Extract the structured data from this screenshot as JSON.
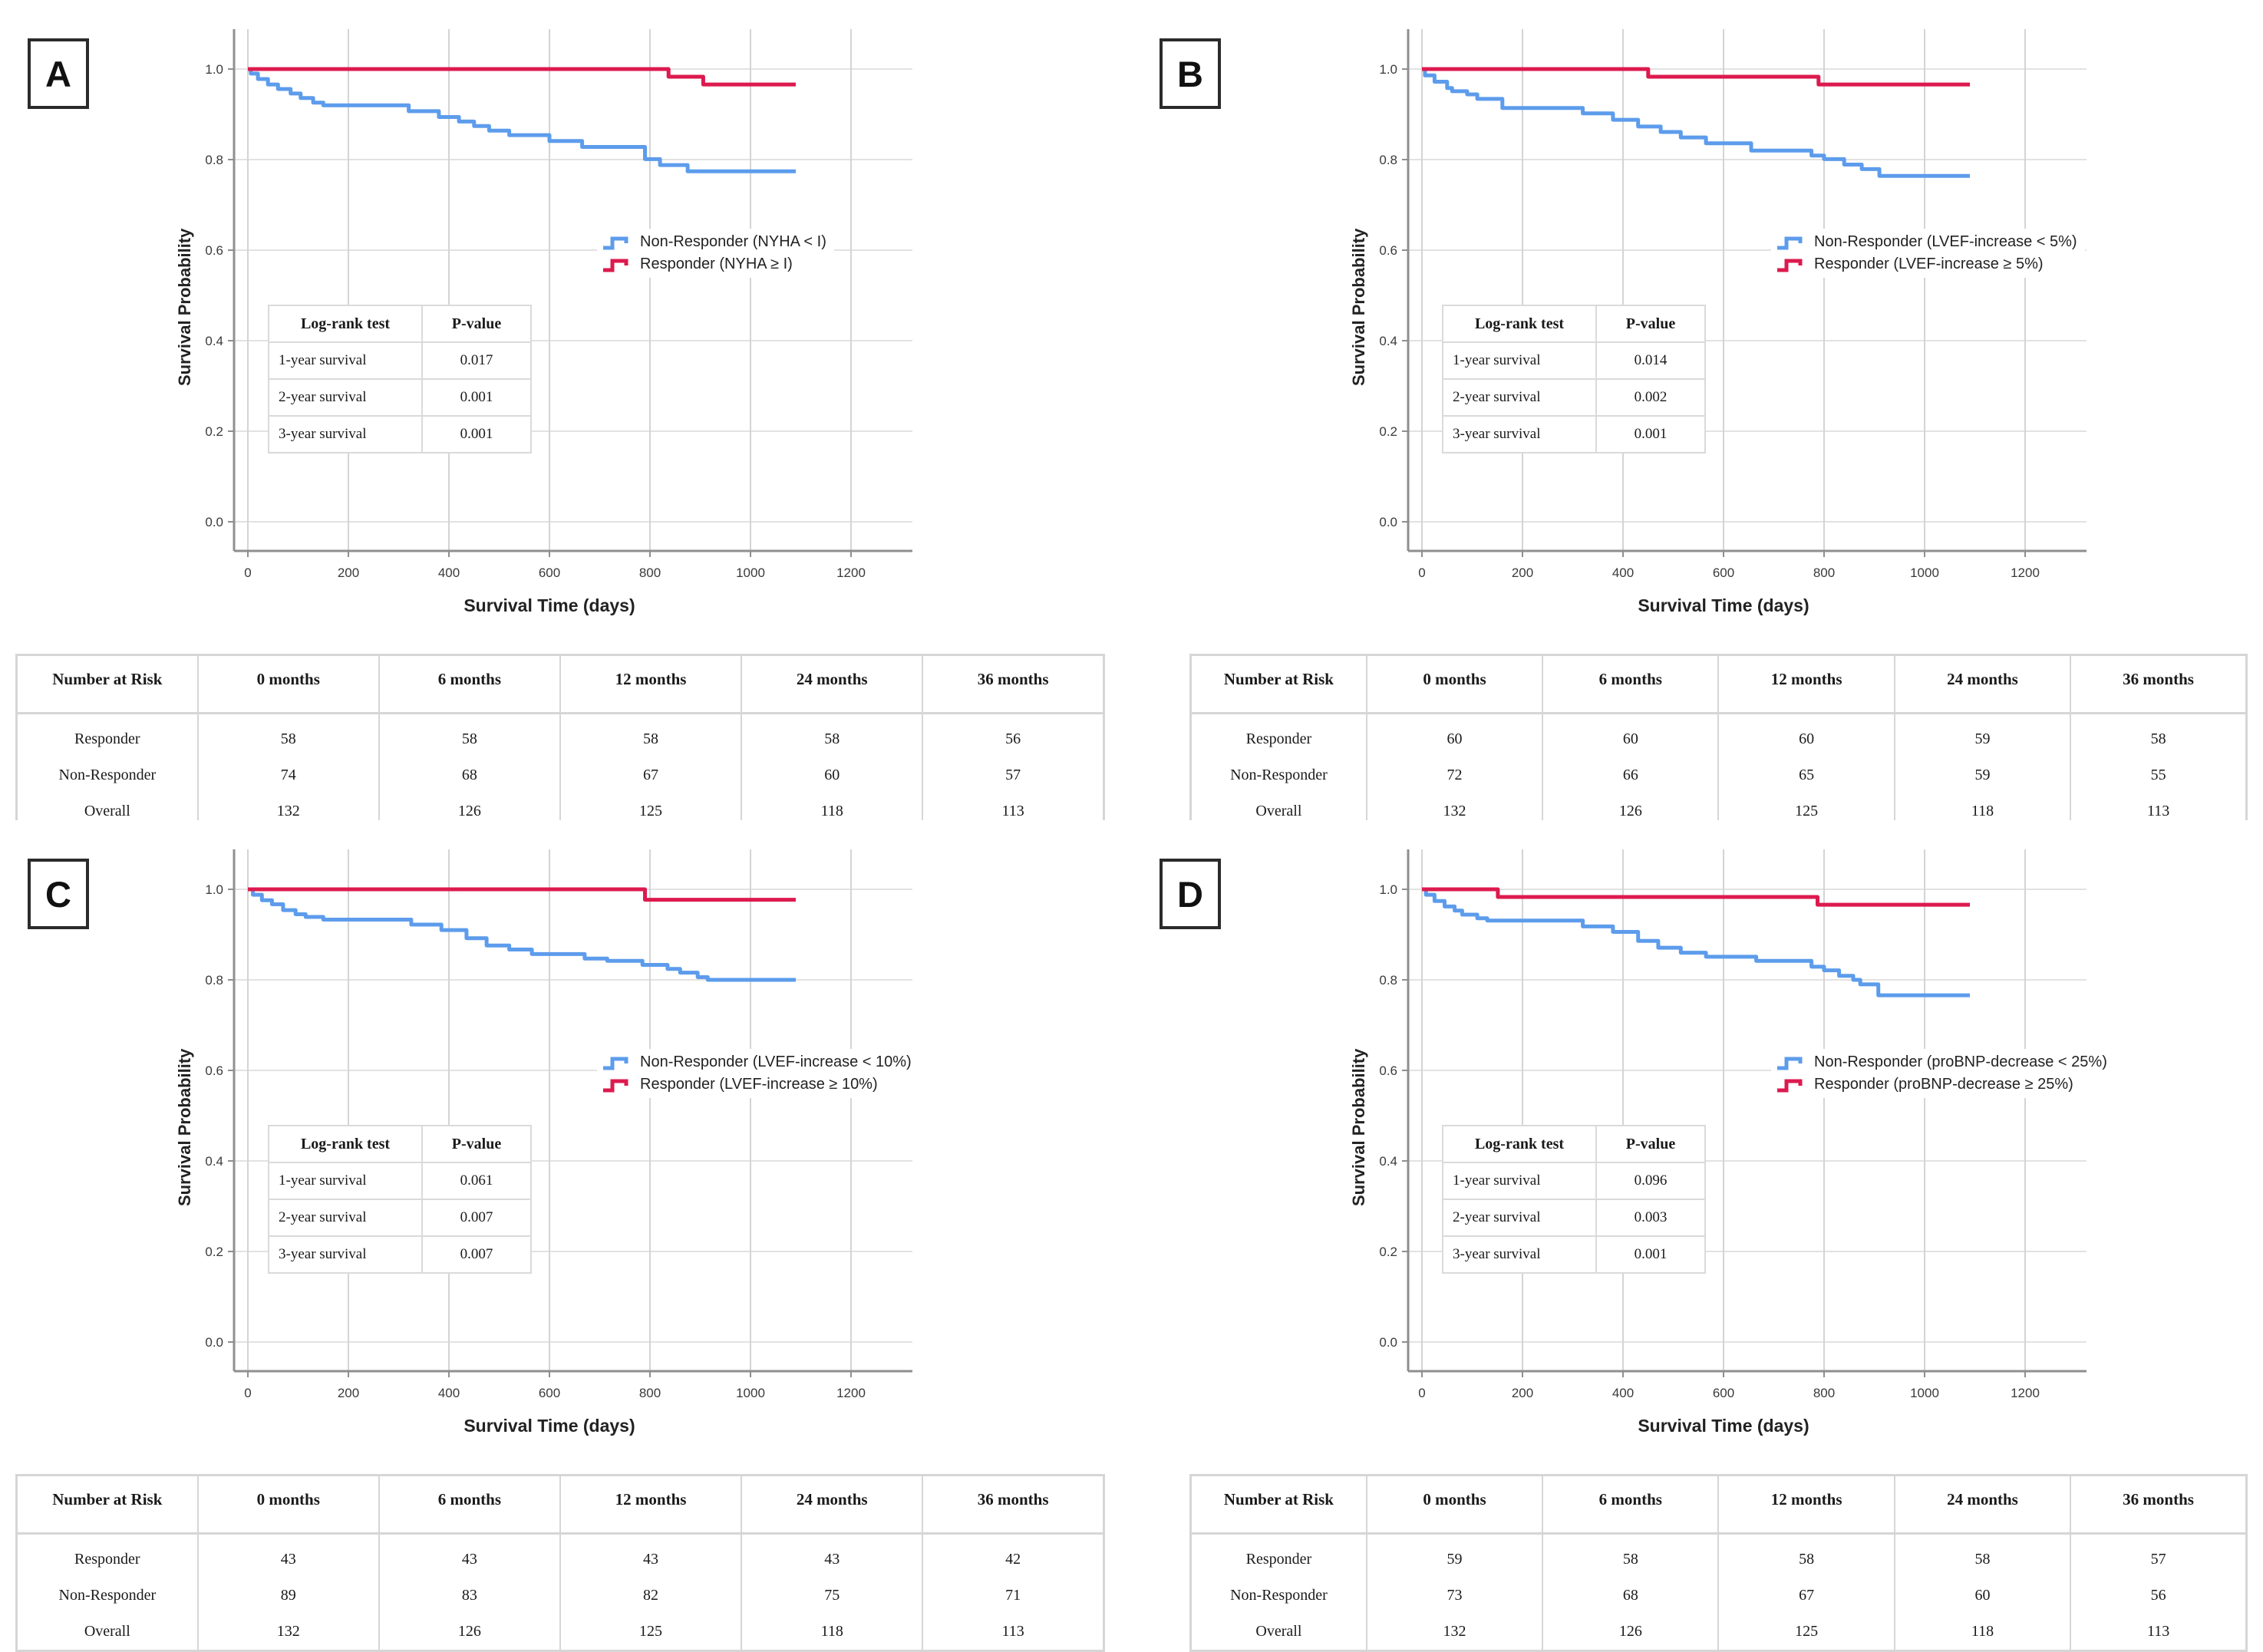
{
  "chart_data": [
    {
      "panel_label": "A",
      "type": "line",
      "subtype": "kaplan-meier-step",
      "xlabel": "Survival Time (days)",
      "ylabel": "Survival Probability",
      "xticks": [
        "0",
        "200",
        "400",
        "600",
        "800",
        "1000",
        "1200"
      ],
      "yticks": [
        "0.0",
        "0.2",
        "0.4",
        "0.6",
        "0.8",
        "1.0"
      ],
      "xlim": [
        0,
        1260
      ],
      "ylim": [
        0.0,
        1.05
      ],
      "grid": true,
      "legend_position": "right-center",
      "series": [
        {
          "name": "Non-Responder (NYHA < I)",
          "color": "#5d9cec",
          "steps": [
            [
              0,
              1.0
            ],
            [
              6,
              0.99
            ],
            [
              20,
              0.978
            ],
            [
              40,
              0.966
            ],
            [
              60,
              0.956
            ],
            [
              85,
              0.946
            ],
            [
              105,
              0.936
            ],
            [
              130,
              0.926
            ],
            [
              150,
              0.92
            ],
            [
              320,
              0.907
            ],
            [
              380,
              0.894
            ],
            [
              420,
              0.884
            ],
            [
              450,
              0.874
            ],
            [
              480,
              0.864
            ],
            [
              520,
              0.854
            ],
            [
              600,
              0.841
            ],
            [
              665,
              0.828
            ],
            [
              790,
              0.801
            ],
            [
              820,
              0.788
            ],
            [
              875,
              0.774
            ],
            [
              1090,
              0.774
            ]
          ]
        },
        {
          "name": "Responder (NYHA ≥ I)",
          "color": "#dc1a4e",
          "steps": [
            [
              0,
              1.0
            ],
            [
              837,
              0.983
            ],
            [
              906,
              0.966
            ],
            [
              1090,
              0.966
            ]
          ]
        }
      ],
      "logrank": {
        "headers": [
          "Log-rank test",
          "P-value"
        ],
        "rows": [
          [
            "1-year survival",
            "0.017"
          ],
          [
            "2-year survival",
            "0.001"
          ],
          [
            "3-year survival",
            "0.001"
          ]
        ]
      },
      "risk_table": {
        "headers": [
          "Number at Risk",
          "0 months",
          "6 months",
          "12 months",
          "24 months",
          "36 months"
        ],
        "rows": [
          [
            "Responder",
            "58",
            "58",
            "58",
            "58",
            "56"
          ],
          [
            "Non-Responder",
            "74",
            "68",
            "67",
            "60",
            "57"
          ],
          [
            "Overall",
            "132",
            "126",
            "125",
            "118",
            "113"
          ]
        ]
      }
    },
    {
      "panel_label": "B",
      "type": "line",
      "subtype": "kaplan-meier-step",
      "xlabel": "Survival Time (days)",
      "ylabel": "Survival Probability",
      "xticks": [
        "0",
        "200",
        "400",
        "600",
        "800",
        "1000",
        "1200"
      ],
      "yticks": [
        "0.0",
        "0.2",
        "0.4",
        "0.6",
        "0.8",
        "1.0"
      ],
      "xlim": [
        0,
        1260
      ],
      "ylim": [
        0.0,
        1.05
      ],
      "grid": true,
      "legend_position": "right-center",
      "series": [
        {
          "name": "Non-Responder (LVEF-increase < 5%)",
          "color": "#5d9cec",
          "steps": [
            [
              0,
              1.0
            ],
            [
              6,
              0.986
            ],
            [
              25,
              0.972
            ],
            [
              50,
              0.958
            ],
            [
              60,
              0.951
            ],
            [
              90,
              0.944
            ],
            [
              110,
              0.934
            ],
            [
              160,
              0.914
            ],
            [
              320,
              0.902
            ],
            [
              380,
              0.888
            ],
            [
              430,
              0.873
            ],
            [
              475,
              0.861
            ],
            [
              515,
              0.849
            ],
            [
              565,
              0.836
            ],
            [
              655,
              0.82
            ],
            [
              775,
              0.809
            ],
            [
              800,
              0.801
            ],
            [
              840,
              0.789
            ],
            [
              875,
              0.779
            ],
            [
              910,
              0.764
            ],
            [
              1090,
              0.764
            ]
          ]
        },
        {
          "name": "Responder (LVEF-increase ≥ 5%)",
          "color": "#dc1a4e",
          "steps": [
            [
              0,
              1.0
            ],
            [
              450,
              0.983
            ],
            [
              789,
              0.966
            ],
            [
              1090,
              0.966
            ]
          ]
        }
      ],
      "logrank": {
        "headers": [
          "Log-rank test",
          "P-value"
        ],
        "rows": [
          [
            "1-year survival",
            "0.014"
          ],
          [
            "2-year survival",
            "0.002"
          ],
          [
            "3-year survival",
            "0.001"
          ]
        ]
      },
      "risk_table": {
        "headers": [
          "Number at Risk",
          "0 months",
          "6 months",
          "12 months",
          "24 months",
          "36 months"
        ],
        "rows": [
          [
            "Responder",
            "60",
            "60",
            "60",
            "59",
            "58"
          ],
          [
            "Non-Responder",
            "72",
            "66",
            "65",
            "59",
            "55"
          ],
          [
            "Overall",
            "132",
            "126",
            "125",
            "118",
            "113"
          ]
        ]
      }
    },
    {
      "panel_label": "C",
      "type": "line",
      "subtype": "kaplan-meier-step",
      "xlabel": "Survival Time (days)",
      "ylabel": "Survival Probability",
      "xticks": [
        "0",
        "200",
        "400",
        "600",
        "800",
        "1000",
        "1200"
      ],
      "yticks": [
        "0.0",
        "0.2",
        "0.4",
        "0.6",
        "0.8",
        "1.0"
      ],
      "xlim": [
        0,
        1260
      ],
      "ylim": [
        0.0,
        1.05
      ],
      "grid": true,
      "legend_position": "right-center",
      "series": [
        {
          "name": "Non-Responder (LVEF-increase < 10%)",
          "color": "#5d9cec",
          "steps": [
            [
              0,
              1.0
            ],
            [
              10,
              0.988
            ],
            [
              28,
              0.976
            ],
            [
              48,
              0.967
            ],
            [
              70,
              0.954
            ],
            [
              95,
              0.945
            ],
            [
              115,
              0.939
            ],
            [
              150,
              0.933
            ],
            [
              325,
              0.922
            ],
            [
              385,
              0.91
            ],
            [
              435,
              0.892
            ],
            [
              475,
              0.876
            ],
            [
              520,
              0.867
            ],
            [
              565,
              0.857
            ],
            [
              670,
              0.847
            ],
            [
              715,
              0.842
            ],
            [
              785,
              0.833
            ],
            [
              835,
              0.824
            ],
            [
              860,
              0.816
            ],
            [
              895,
              0.806
            ],
            [
              915,
              0.8
            ],
            [
              1090,
              0.8
            ]
          ]
        },
        {
          "name": "Responder (LVEF-increase ≥ 10%)",
          "color": "#dc1a4e",
          "steps": [
            [
              0,
              1.0
            ],
            [
              790,
              0.977
            ],
            [
              1090,
              0.977
            ]
          ]
        }
      ],
      "logrank": {
        "headers": [
          "Log-rank test",
          "P-value"
        ],
        "rows": [
          [
            "1-year survival",
            "0.061"
          ],
          [
            "2-year survival",
            "0.007"
          ],
          [
            "3-year survival",
            "0.007"
          ]
        ]
      },
      "risk_table": {
        "headers": [
          "Number at Risk",
          "0 months",
          "6 months",
          "12 months",
          "24 months",
          "36 months"
        ],
        "rows": [
          [
            "Responder",
            "43",
            "43",
            "43",
            "43",
            "42"
          ],
          [
            "Non-Responder",
            "89",
            "83",
            "82",
            "75",
            "71"
          ],
          [
            "Overall",
            "132",
            "126",
            "125",
            "118",
            "113"
          ]
        ]
      }
    },
    {
      "panel_label": "D",
      "type": "line",
      "subtype": "kaplan-meier-step",
      "xlabel": "Survival Time (days)",
      "ylabel": "Survival Probability",
      "xticks": [
        "0",
        "200",
        "400",
        "600",
        "800",
        "1000",
        "1200"
      ],
      "yticks": [
        "0.0",
        "0.2",
        "0.4",
        "0.6",
        "0.8",
        "1.0"
      ],
      "xlim": [
        0,
        1260
      ],
      "ylim": [
        0.0,
        1.05
      ],
      "grid": true,
      "legend_position": "right-center",
      "series": [
        {
          "name": "Non-Responder (proBNP-decrease < 25%)",
          "color": "#5d9cec",
          "steps": [
            [
              0,
              1.0
            ],
            [
              8,
              0.988
            ],
            [
              25,
              0.974
            ],
            [
              45,
              0.962
            ],
            [
              65,
              0.953
            ],
            [
              80,
              0.944
            ],
            [
              110,
              0.936
            ],
            [
              130,
              0.931
            ],
            [
              320,
              0.918
            ],
            [
              380,
              0.906
            ],
            [
              430,
              0.886
            ],
            [
              470,
              0.871
            ],
            [
              515,
              0.86
            ],
            [
              565,
              0.851
            ],
            [
              665,
              0.842
            ],
            [
              775,
              0.829
            ],
            [
              800,
              0.821
            ],
            [
              830,
              0.809
            ],
            [
              858,
              0.8
            ],
            [
              872,
              0.79
            ],
            [
              908,
              0.766
            ],
            [
              1090,
              0.766
            ]
          ]
        },
        {
          "name": "Responder (proBNP-decrease ≥ 25%)",
          "color": "#dc1a4e",
          "steps": [
            [
              0,
              1.0
            ],
            [
              151,
              0.983
            ],
            [
              787,
              0.966
            ],
            [
              1090,
              0.966
            ]
          ]
        }
      ],
      "logrank": {
        "headers": [
          "Log-rank test",
          "P-value"
        ],
        "rows": [
          [
            "1-year survival",
            "0.096"
          ],
          [
            "2-year survival",
            "0.003"
          ],
          [
            "3-year survival",
            "0.001"
          ]
        ]
      },
      "risk_table": {
        "headers": [
          "Number at Risk",
          "0 months",
          "6 months",
          "12 months",
          "24 months",
          "36 months"
        ],
        "rows": [
          [
            "Responder",
            "59",
            "58",
            "58",
            "58",
            "57"
          ],
          [
            "Non-Responder",
            "73",
            "68",
            "67",
            "60",
            "56"
          ],
          [
            "Overall",
            "132",
            "126",
            "125",
            "118",
            "113"
          ]
        ]
      }
    }
  ]
}
